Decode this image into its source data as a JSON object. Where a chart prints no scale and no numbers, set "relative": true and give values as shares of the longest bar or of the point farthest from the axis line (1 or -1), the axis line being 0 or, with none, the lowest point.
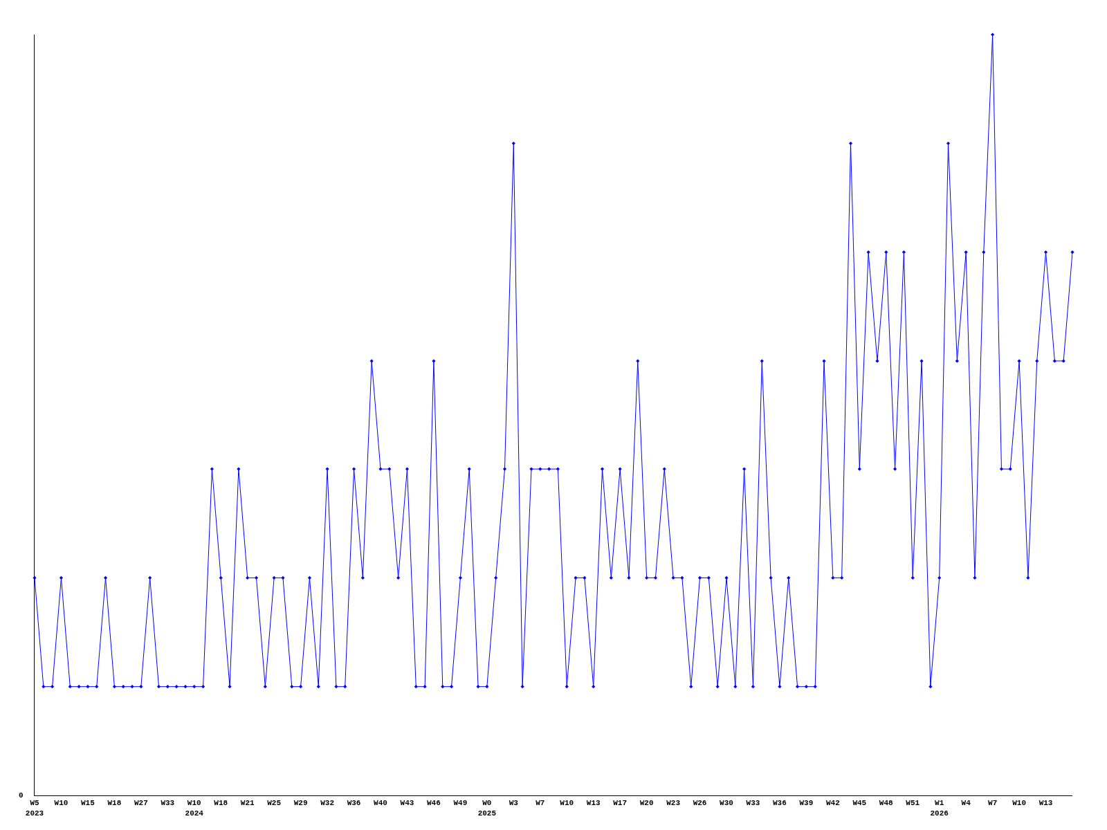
{
  "chart_data": {
    "type": "line",
    "relative": true,
    "marker": "diamond",
    "legend": false,
    "annotations": [
      "0"
    ],
    "categories": [
      "W5\n2023",
      null,
      null,
      "W10",
      null,
      null,
      "W15",
      null,
      null,
      "W18",
      null,
      null,
      "W27",
      null,
      null,
      "W33",
      null,
      null,
      "W10\n2024",
      null,
      null,
      "W18",
      null,
      null,
      "W21",
      null,
      null,
      "W25",
      null,
      null,
      "W29",
      null,
      null,
      "W32",
      null,
      null,
      "W36",
      null,
      null,
      "W40",
      null,
      null,
      "W43",
      null,
      null,
      "W46",
      null,
      null,
      "W49",
      null,
      null,
      "W0\n2025",
      null,
      null,
      "W3",
      null,
      null,
      "W7",
      null,
      null,
      "W10",
      null,
      null,
      "W13",
      null,
      null,
      "W17",
      null,
      null,
      "W20",
      null,
      null,
      "W23",
      null,
      null,
      "W26",
      null,
      null,
      "W30",
      null,
      null,
      "W33",
      null,
      null,
      "W36",
      null,
      null,
      "W39",
      null,
      null,
      "W42",
      null,
      null,
      "W45",
      null,
      null,
      "W48",
      null,
      null,
      "W51",
      null,
      null,
      "W1\n2026",
      null,
      null,
      "W4",
      null,
      null,
      "W7",
      null,
      null,
      "W10",
      null,
      null,
      "W13",
      null,
      null,
      null
    ],
    "series": [
      {
        "color": "#0000ff",
        "values": [
          0.286,
          0.143,
          0.143,
          0.286,
          0.143,
          0.143,
          0.143,
          0.143,
          0.286,
          0.143,
          0.143,
          0.143,
          0.143,
          0.286,
          0.143,
          0.143,
          0.143,
          0.143,
          0.143,
          0.143,
          0.429,
          0.286,
          0.143,
          0.429,
          0.286,
          0.286,
          0.143,
          0.286,
          0.286,
          0.143,
          0.143,
          0.286,
          0.143,
          0.429,
          0.143,
          0.143,
          0.429,
          0.286,
          0.571,
          0.429,
          0.429,
          0.286,
          0.429,
          0.143,
          0.143,
          0.571,
          0.143,
          0.143,
          0.286,
          0.429,
          0.143,
          0.143,
          0.286,
          0.429,
          0.857,
          0.143,
          0.429,
          0.429,
          0.429,
          0.429,
          0.143,
          0.286,
          0.286,
          0.143,
          0.429,
          0.286,
          0.429,
          0.286,
          0.571,
          0.286,
          0.286,
          0.429,
          0.286,
          0.286,
          0.143,
          0.286,
          0.286,
          0.143,
          0.286,
          0.143,
          0.429,
          0.143,
          0.571,
          0.286,
          0.143,
          0.286,
          0.143,
          0.143,
          0.143,
          0.571,
          0.286,
          0.286,
          0.857,
          0.429,
          0.714,
          0.571,
          0.714,
          0.429,
          0.714,
          0.286,
          0.571,
          0.143,
          0.286,
          0.857,
          0.571,
          0.714,
          0.286,
          0.714,
          1,
          0.429,
          0.429,
          0.571,
          0.286,
          0.571,
          0.714,
          0.571,
          0.571,
          0.714
        ]
      }
    ]
  }
}
